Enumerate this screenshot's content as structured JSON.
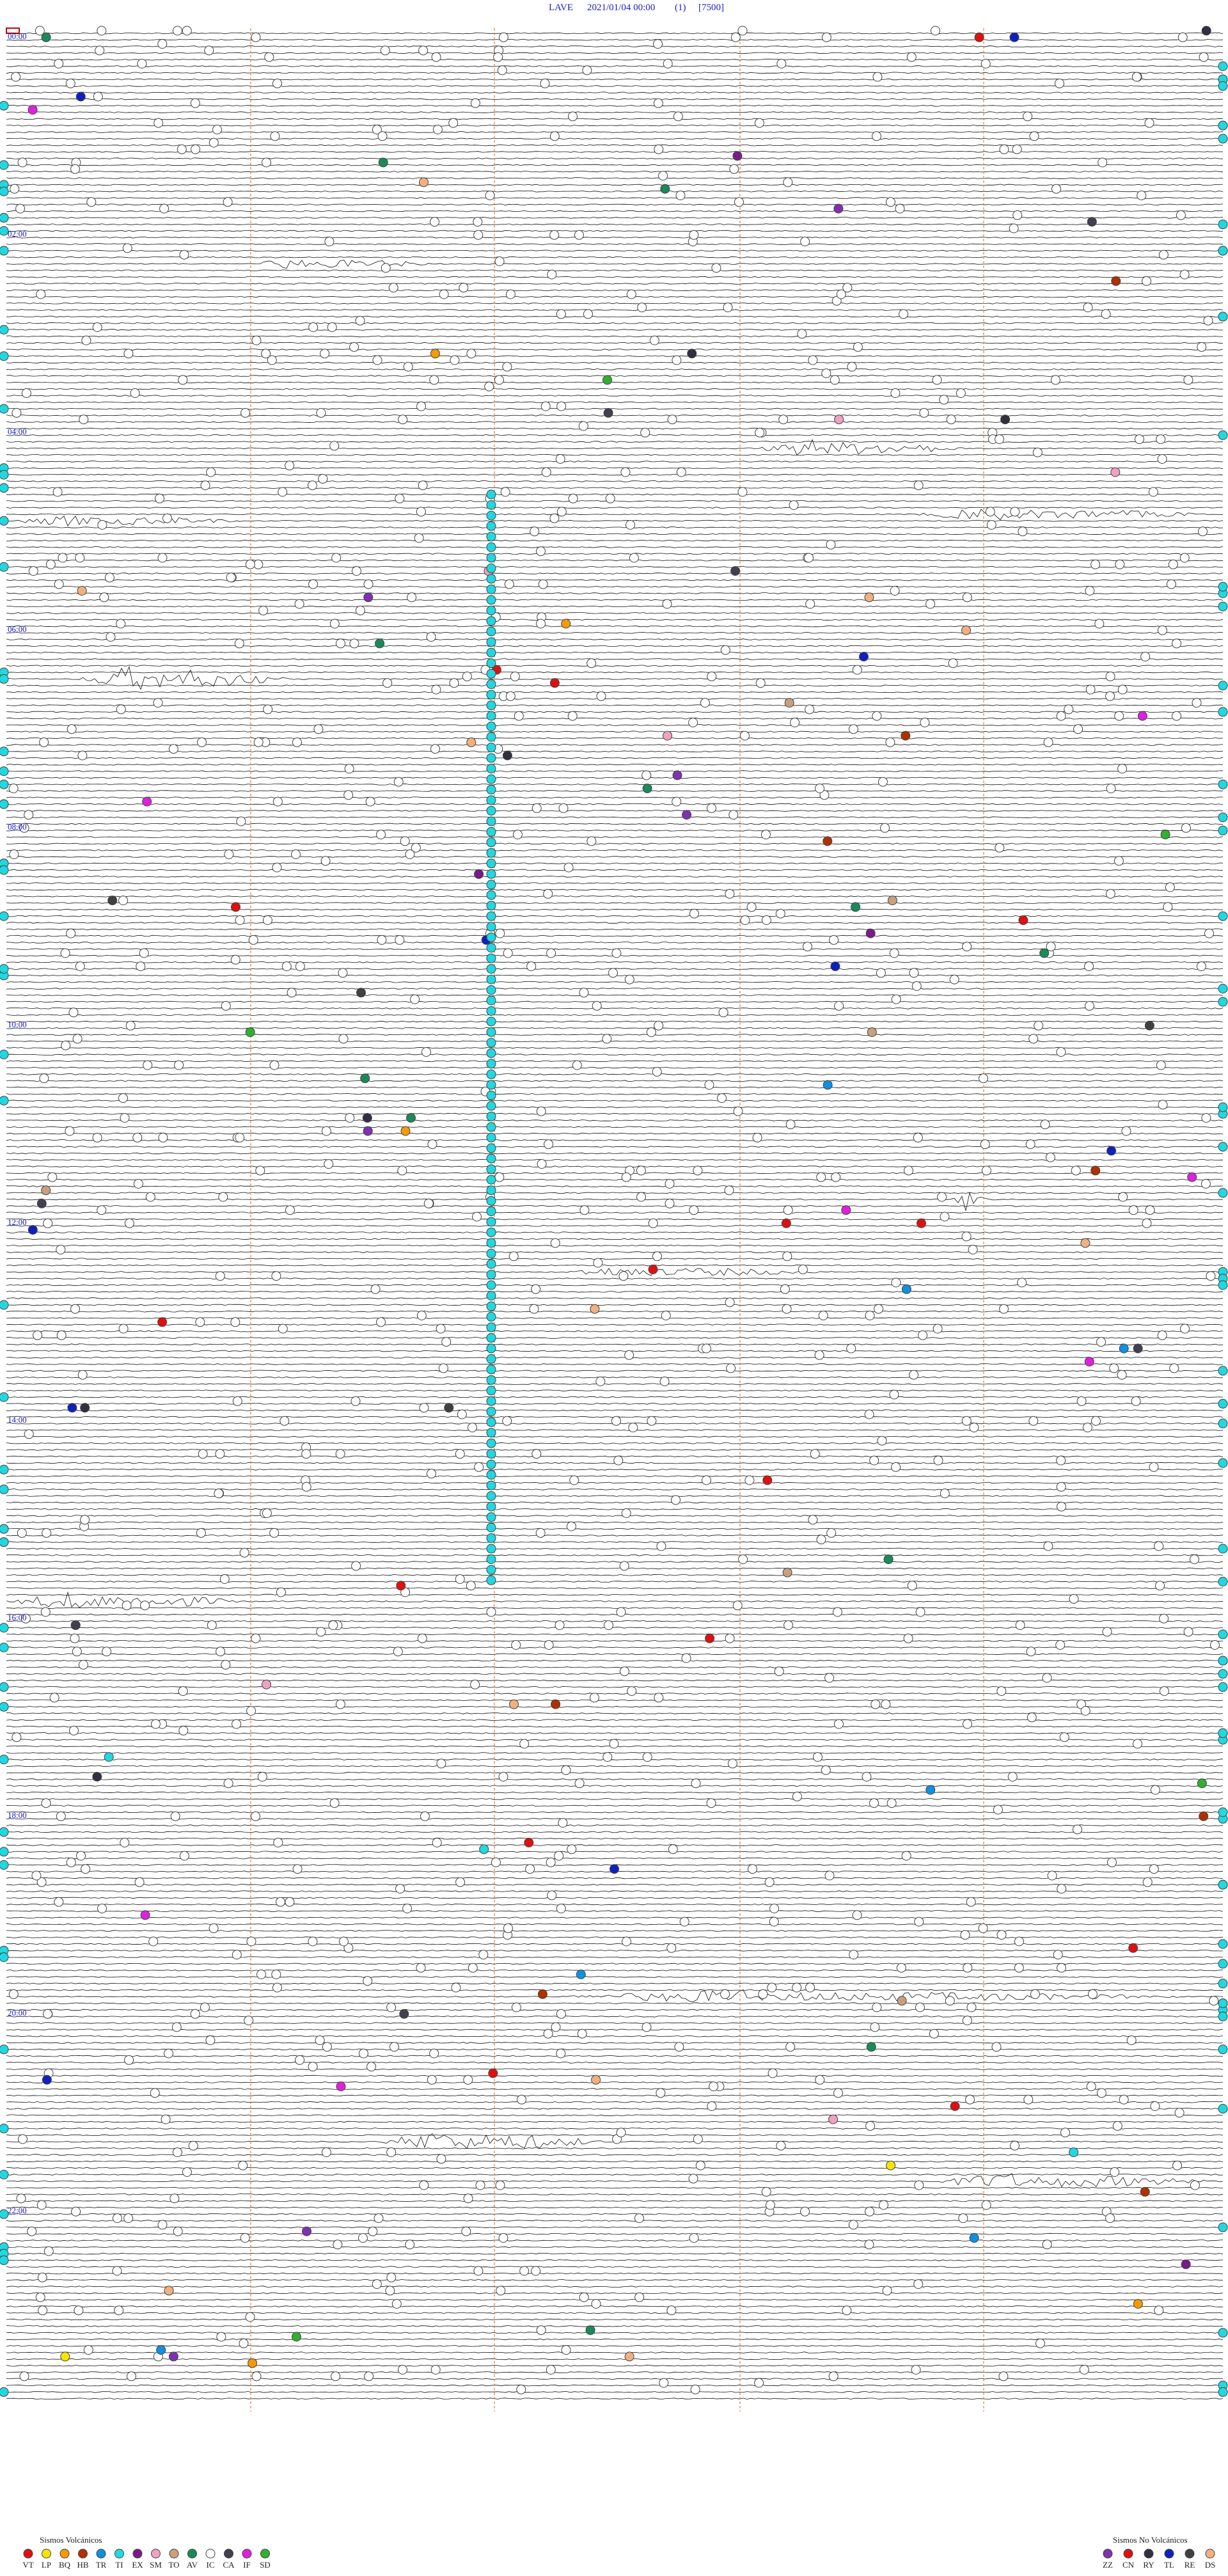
{
  "header": {
    "station": "LAVE",
    "datetime": "2021/01/04 00:00",
    "channel": "(1)",
    "scale": "[7500]"
  },
  "hour_labels": [
    "00:00",
    "02:00",
    "04:00",
    "06:00",
    "08:00",
    "10:00",
    "12:00",
    "14:00",
    "16:00",
    "18:00",
    "20:00",
    "22:00"
  ],
  "legend": {
    "volcanic": {
      "title": "Sismos Volcánicos",
      "items": [
        {
          "code": "VT",
          "color": "#e01010"
        },
        {
          "code": "LP",
          "color": "#f5e600"
        },
        {
          "code": "BQ",
          "color": "#f59a00"
        },
        {
          "code": "HB",
          "color": "#b03000"
        },
        {
          "code": "TR",
          "color": "#1090e0"
        },
        {
          "code": "TI",
          "color": "#20d8e0"
        },
        {
          "code": "EX",
          "color": "#7a1a8a"
        },
        {
          "code": "SM",
          "color": "#f0a0c0"
        },
        {
          "code": "TO",
          "color": "#c8a080"
        },
        {
          "code": "AV",
          "color": "#1a8a5a"
        },
        {
          "code": "IC",
          "color": "#ffffff"
        },
        {
          "code": "CA",
          "color": "#404050"
        },
        {
          "code": "IF",
          "color": "#e020e0"
        },
        {
          "code": "SD",
          "color": "#30b030"
        }
      ]
    },
    "non_volcanic": {
      "title": "Sismos No Volcánicos",
      "items": [
        {
          "code": "ZZ",
          "color": "#8030b0"
        },
        {
          "code": "CN",
          "color": "#e01010"
        },
        {
          "code": "RY",
          "color": "#303040"
        },
        {
          "code": "TL",
          "color": "#1020c0"
        },
        {
          "code": "RE",
          "color": "#404040"
        },
        {
          "code": "DS",
          "color": "#f0b080"
        }
      ]
    }
  }
}
